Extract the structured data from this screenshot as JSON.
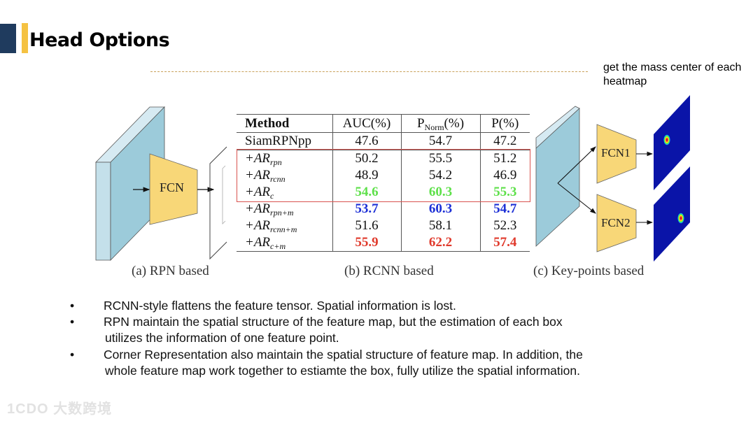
{
  "slide": {
    "title": "Head Options",
    "accent_colors": {
      "navy": "#1f3b5e",
      "yellow": "#f5c242"
    },
    "note": "get the mass center of each heatmap"
  },
  "figure": {
    "panel_a": {
      "caption": "(a) RPN based",
      "block": "FCN"
    },
    "panel_b": {
      "caption": "(b) RCNN based"
    },
    "panel_c": {
      "caption": "(c) Key-points based",
      "blocks": [
        "FCN1",
        "FCN2"
      ]
    }
  },
  "table": {
    "headers": [
      "Method",
      "AUC(%)",
      "P",
      "Norm",
      "(%)",
      "P(%)"
    ],
    "rows": [
      {
        "base": "SiamRPNpp",
        "sub": "",
        "values": [
          "47.6",
          "54.7",
          "47.2"
        ],
        "style": ""
      },
      {
        "base": "+AR",
        "sub": "rpn",
        "values": [
          "50.2",
          "55.5",
          "51.2"
        ],
        "style": ""
      },
      {
        "base": "+AR",
        "sub": "rcnn",
        "values": [
          "48.9",
          "54.2",
          "46.9"
        ],
        "style": ""
      },
      {
        "base": "+AR",
        "sub": "c",
        "values": [
          "54.6",
          "60.3",
          "55.3"
        ],
        "style": "green"
      },
      {
        "base": "+AR",
        "sub": "rpn+m",
        "values": [
          "53.7",
          "60.3",
          "54.7"
        ],
        "style": "blue"
      },
      {
        "base": "+AR",
        "sub": "rcnn+m",
        "values": [
          "51.6",
          "58.1",
          "52.3"
        ],
        "style": "plain"
      },
      {
        "base": "+AR",
        "sub": "c+m",
        "values": [
          "55.9",
          "62.2",
          "57.4"
        ],
        "style": "red"
      }
    ],
    "highlight_color": "#d9534f"
  },
  "bullets": [
    {
      "marker": "•",
      "lines": [
        "RCNN-style flattens the feature tensor. Spatial information is lost."
      ]
    },
    {
      "marker": "•",
      "lines": [
        "RPN maintain the spatial structure of the feature map, but the estimation of each box",
        "utilizes the information of one feature point."
      ]
    },
    {
      "marker": "•",
      "lines": [
        "Corner Representation also maintain the spatial structure of feature map. In addition, the",
        "whole feature map work together to estiamte the box, fully utilize the spatial information."
      ]
    }
  ],
  "watermark": "1CDO 大数跨境"
}
